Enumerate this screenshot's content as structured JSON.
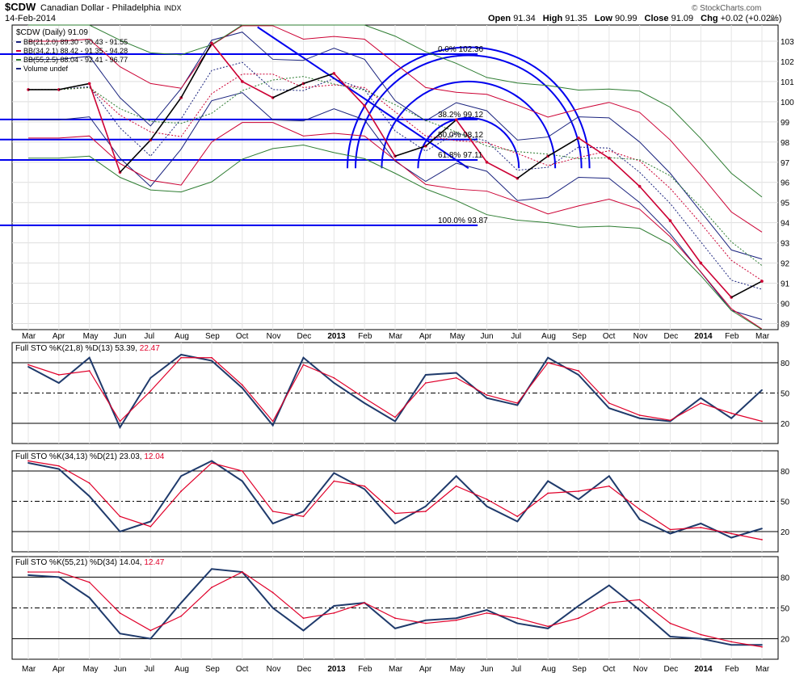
{
  "header": {
    "symbol": "$CDW",
    "name": "Canadian Dollar - Philadelphia",
    "exchange": "INDX",
    "date": "14-Feb-2014",
    "open_label": "Open",
    "open": "91.34",
    "high_label": "High",
    "high": "91.35",
    "low_label": "Low",
    "low": "90.99",
    "close_label": "Close",
    "close": "91.09",
    "chg_label": "Chg",
    "chg": "+0.02 (+0.02%)",
    "watermark": "© StockCharts.com"
  },
  "colors": {
    "price_up": "#000000",
    "price_down": "#cc0033",
    "bb21": "#1a237e",
    "bb34": "#cc0033",
    "bb55": "#2e7d32",
    "annotation": "#0000ee",
    "stoch_k": "#1f3a6b",
    "stoch_d": "#e0002a"
  },
  "chart_data": [
    {
      "type": "line",
      "panel": "price",
      "title": "$CDW (Daily) 91.09",
      "legend": [
        {
          "label": "BB(21,2.0) 89.30 - 90.43 - 91.55",
          "color": "#1a237e"
        },
        {
          "label": "BB(34,2.1) 88.42 - 91.35 - 94.28",
          "color": "#cc0033"
        },
        {
          "label": "BB(55,2.5) 88.04 - 92.41 - 96.77",
          "color": "#2e7d32"
        },
        {
          "label": "Volume undef",
          "color": "#1a237e"
        }
      ],
      "ylim": [
        88.7,
        103.8
      ],
      "y_ticks": [
        "89",
        "90",
        "91",
        "92",
        "93",
        "94",
        "95",
        "96",
        "97",
        "98",
        "99",
        "100",
        "101",
        "102",
        "103"
      ],
      "months": [
        "Mar",
        "Apr",
        "May",
        "Jun",
        "Jul",
        "Aug",
        "Sep",
        "Oct",
        "Nov",
        "Dec",
        "2013",
        "Feb",
        "Mar",
        "Apr",
        "May",
        "Jun",
        "Jul",
        "Aug",
        "Sep",
        "Oct",
        "Nov",
        "Dec",
        "2014",
        "Feb",
        "Mar"
      ],
      "x": [
        0,
        1,
        2,
        3,
        4,
        5,
        6,
        7,
        8,
        9,
        10,
        11,
        12,
        13,
        14,
        15,
        16,
        17,
        18,
        19,
        20,
        21,
        22,
        23,
        24
      ],
      "close": [
        100.6,
        100.6,
        100.9,
        96.5,
        98.1,
        100.2,
        102.9,
        101.0,
        100.2,
        100.9,
        101.4,
        99.8,
        97.3,
        97.8,
        99.1,
        97.0,
        96.2,
        97.3,
        98.2,
        97.2,
        95.8,
        94.1,
        92.0,
        90.3,
        91.1
      ],
      "fibonacci": [
        {
          "label": "0.0% 102.36",
          "value": 102.36
        },
        {
          "label": "38.2% 99.12",
          "value": 99.12
        },
        {
          "label": "50.0% 98.12",
          "value": 98.12
        },
        {
          "label": "61.8% 97.11",
          "value": 97.11
        },
        {
          "label": "100.0% 93.87",
          "value": 93.87
        }
      ],
      "trendline": {
        "from": [
          7.5,
          103.7
        ],
        "to": [
          14.4,
          96.7
        ]
      },
      "arcs": [
        {
          "center_x": 14.4,
          "center_y": 96.7,
          "peak": 102.7
        },
        {
          "center_x": 14.4,
          "center_y": 96.7,
          "peak": 102.3
        },
        {
          "center_x": 14.4,
          "center_y": 96.7,
          "peak": 101.0
        },
        {
          "center_x": 14.4,
          "center_y": 96.7,
          "peak": 99.2
        }
      ]
    },
    {
      "type": "line",
      "panel": "stoch1",
      "label_prefix": "Full STO %K(21,8) %D(13)",
      "k_value": "53.39",
      "d_value": "22.47",
      "ylim": [
        0,
        100
      ],
      "levels": [
        "80",
        "50",
        "20"
      ],
      "x": [
        0,
        1,
        2,
        3,
        4,
        5,
        6,
        7,
        8,
        9,
        10,
        11,
        12,
        13,
        14,
        15,
        16,
        17,
        18,
        19,
        20,
        21,
        22,
        23,
        24
      ],
      "series": [
        {
          "name": "%K",
          "values": [
            76,
            60,
            85,
            16,
            65,
            88,
            82,
            55,
            18,
            85,
            60,
            40,
            22,
            68,
            70,
            45,
            38,
            85,
            68,
            35,
            25,
            22,
            45,
            25,
            53
          ]
        },
        {
          "name": "%D",
          "values": [
            78,
            68,
            72,
            22,
            52,
            85,
            85,
            58,
            22,
            78,
            65,
            45,
            26,
            60,
            65,
            48,
            40,
            80,
            72,
            40,
            28,
            23,
            40,
            30,
            22
          ]
        }
      ]
    },
    {
      "type": "line",
      "panel": "stoch2",
      "label_prefix": "Full STO %K(34,13) %D(21)",
      "k_value": "23.03",
      "d_value": "12.04",
      "ylim": [
        0,
        100
      ],
      "levels": [
        "80",
        "50",
        "20"
      ],
      "x": [
        0,
        1,
        2,
        3,
        4,
        5,
        6,
        7,
        8,
        9,
        10,
        11,
        12,
        13,
        14,
        15,
        16,
        17,
        18,
        19,
        20,
        21,
        22,
        23,
        24
      ],
      "series": [
        {
          "name": "%K",
          "values": [
            88,
            82,
            55,
            20,
            30,
            75,
            90,
            70,
            28,
            40,
            78,
            62,
            28,
            45,
            75,
            45,
            30,
            70,
            52,
            75,
            32,
            18,
            28,
            14,
            23
          ]
        },
        {
          "name": "%D",
          "values": [
            90,
            85,
            68,
            35,
            25,
            60,
            88,
            80,
            40,
            35,
            70,
            65,
            38,
            40,
            65,
            52,
            35,
            58,
            60,
            65,
            42,
            22,
            24,
            18,
            12
          ]
        }
      ]
    },
    {
      "type": "line",
      "panel": "stoch3",
      "label_prefix": "Full STO %K(55,21) %D(34)",
      "k_value": "14.04",
      "d_value": "12.47",
      "ylim": [
        0,
        100
      ],
      "levels": [
        "80",
        "50",
        "20"
      ],
      "x": [
        0,
        1,
        2,
        3,
        4,
        5,
        6,
        7,
        8,
        9,
        10,
        11,
        12,
        13,
        14,
        15,
        16,
        17,
        18,
        19,
        20,
        21,
        22,
        23,
        24
      ],
      "series": [
        {
          "name": "%K",
          "values": [
            82,
            80,
            60,
            25,
            20,
            55,
            88,
            85,
            50,
            28,
            52,
            55,
            30,
            38,
            40,
            48,
            35,
            30,
            52,
            72,
            48,
            22,
            20,
            14,
            14
          ]
        },
        {
          "name": "%D",
          "values": [
            85,
            85,
            75,
            45,
            28,
            42,
            70,
            85,
            65,
            40,
            45,
            55,
            40,
            35,
            38,
            45,
            40,
            32,
            40,
            55,
            58,
            35,
            24,
            17,
            12
          ]
        }
      ]
    }
  ]
}
